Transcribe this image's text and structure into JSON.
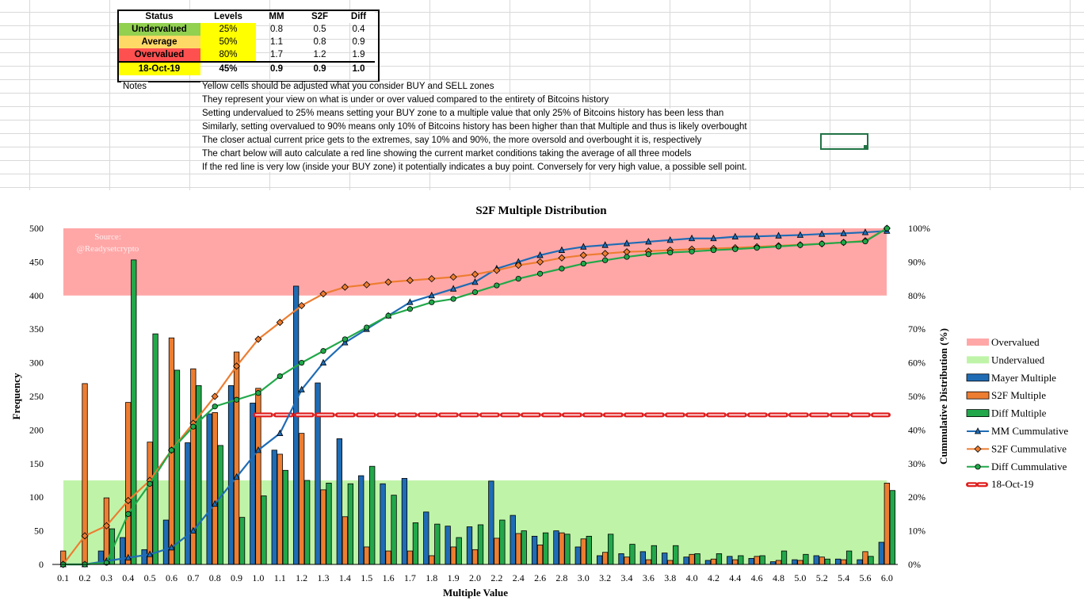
{
  "summary_table": {
    "headers": [
      "Status",
      "Levels",
      "MM",
      "S2F",
      "Diff"
    ],
    "rows": [
      {
        "status": "Undervalued",
        "level": "25%",
        "mm": "0.8",
        "s2f": "0.5",
        "diff": "0.4",
        "color": "#92d050"
      },
      {
        "status": "Average",
        "level": "50%",
        "mm": "1.1",
        "s2f": "0.8",
        "diff": "0.9",
        "color": "#ffd966"
      },
      {
        "status": "Overvalued",
        "level": "80%",
        "mm": "1.7",
        "s2f": "1.2",
        "diff": "1.9",
        "color": "#ff5050"
      }
    ],
    "current": {
      "date": "18-Oct-19",
      "level": "45%",
      "mm": "0.9",
      "s2f": "0.9",
      "diff": "1.0",
      "color": "#ffff00"
    }
  },
  "notes": {
    "label": "Notes",
    "lines": [
      "Yellow cells should be adjusted what you consider BUY and SELL zones",
      "They represent your view on what is under or over valued compared to the entirety of Bitcoins history",
      "Setting undervalued to 25% means setting your BUY zone to a multiple value that only 25% of Bitcoins history has been less than",
      "Similarly, setting overvalued to 90% means only 10% of Bitcoins history has been higher than that Multiple and thus is likely overbought",
      "The closer actual current price gets to the extremes, say 10% and 90%, the more oversold and overbought it is, respectively",
      "The chart below will auto calculate a red line showing the current market conditions taking the average of all three models",
      "If the red line is very low (inside your BUY zone) it potentially indicates a buy point. Conversely for very high value, a possible sell point."
    ]
  },
  "chart_data": {
    "type": "bar",
    "title": "S2F Multiple Distribution",
    "xlabel": "Multiple Value",
    "ylabel": "Frequency",
    "y2label": "Cummulative Distribution (%)",
    "watermark": [
      "Source:",
      "@Readysetcrypto"
    ],
    "ylim": [
      0,
      500
    ],
    "y2lim": [
      0,
      100
    ],
    "yticks": [
      "0",
      "50",
      "100",
      "150",
      "200",
      "250",
      "300",
      "350",
      "400",
      "450",
      "500"
    ],
    "y2ticks": [
      "0%",
      "10%",
      "20%",
      "30%",
      "40%",
      "50%",
      "60%",
      "70%",
      "80%",
      "90%",
      "100%"
    ],
    "categories": [
      "0.1",
      "0.2",
      "0.3",
      "0.4",
      "0.5",
      "0.6",
      "0.7",
      "0.8",
      "0.9",
      "1.0",
      "1.1",
      "1.2",
      "1.3",
      "1.4",
      "1.5",
      "1.6",
      "1.7",
      "1.8",
      "1.9",
      "2.0",
      "2.2",
      "2.4",
      "2.6",
      "2.8",
      "3.0",
      "3.2",
      "3.4",
      "3.6",
      "3.8",
      "4.0",
      "4.2",
      "4.4",
      "4.6",
      "4.8",
      "5.0",
      "5.2",
      "5.4",
      "5.6",
      "6.0"
    ],
    "bands": [
      {
        "name": "Overvalued",
        "from": 400,
        "to": 500,
        "color": "#ffa7a7"
      },
      {
        "name": "Undervalued",
        "from": 0,
        "to": 125,
        "color": "#bff4a8"
      }
    ],
    "series": [
      {
        "name": "Mayer Multiple",
        "kind": "bar",
        "color": "#1f6cb5",
        "values": [
          0,
          0,
          20,
          40,
          22,
          66,
          181,
          224,
          266,
          240,
          170,
          414,
          270,
          187,
          132,
          120,
          128,
          78,
          57,
          56,
          124,
          73,
          42,
          50,
          26,
          13,
          16,
          19,
          17,
          11,
          6,
          12,
          9,
          4,
          7,
          13,
          8,
          7,
          33
        ]
      },
      {
        "name": "S2F Multiple",
        "kind": "bar",
        "color": "#ed7d31",
        "values": [
          20,
          269,
          99,
          241,
          182,
          337,
          291,
          226,
          316,
          262,
          164,
          195,
          111,
          71,
          26,
          20,
          20,
          13,
          26,
          22,
          39,
          46,
          29,
          47,
          38,
          18,
          11,
          7,
          6,
          15,
          8,
          7,
          12,
          6,
          6,
          11,
          7,
          19,
          121
        ]
      },
      {
        "name": "Diff Multiple",
        "kind": "bar",
        "color": "#22a84a",
        "values": [
          0,
          0,
          53,
          453,
          343,
          289,
          266,
          177,
          70,
          102,
          140,
          125,
          121,
          120,
          146,
          103,
          62,
          60,
          40,
          59,
          66,
          50,
          47,
          45,
          42,
          45,
          30,
          28,
          28,
          16,
          16,
          13,
          13,
          20,
          15,
          8,
          20,
          12,
          110
        ]
      },
      {
        "name": "MM Cummulative",
        "kind": "line",
        "marker": "triangle",
        "color": "#1f6cb5",
        "values": [
          0,
          0,
          1,
          2,
          3,
          5,
          10,
          18,
          26,
          34,
          39,
          52,
          60,
          66,
          70,
          74,
          78,
          80,
          82,
          84,
          88,
          90,
          92,
          93.5,
          94.5,
          95,
          95.5,
          96,
          96.5,
          97,
          97,
          97.5,
          97.6,
          97.8,
          98,
          98.3,
          98.5,
          98.8,
          99.2
        ]
      },
      {
        "name": "S2F Cummulative",
        "kind": "line",
        "marker": "diamond",
        "color": "#ed7d31",
        "values": [
          0,
          8.5,
          11.5,
          19,
          25,
          34,
          42,
          50,
          59,
          67,
          72,
          77,
          80.5,
          82.5,
          83.2,
          84,
          84.5,
          85,
          85.5,
          86.3,
          87.5,
          89,
          90,
          91.2,
          92,
          92.5,
          93,
          93.2,
          93.5,
          93.8,
          94,
          94.2,
          94.5,
          94.8,
          95.1,
          95.4,
          95.8,
          96.3,
          100
        ]
      },
      {
        "name": "Diff Cummulative",
        "kind": "line",
        "marker": "circle",
        "color": "#22a84a",
        "values": [
          0,
          0,
          0.5,
          15,
          24,
          34,
          41,
          47,
          49,
          51,
          56,
          60,
          63.5,
          67,
          70.5,
          74,
          76,
          78,
          79,
          81,
          83,
          85,
          86.5,
          88,
          89.5,
          90.5,
          91.5,
          92.3,
          92.8,
          93.1,
          93.5,
          93.8,
          94.2,
          94.6,
          95,
          95.4,
          95.8,
          96.1,
          100
        ]
      },
      {
        "name": "18-Oct-19",
        "kind": "hline",
        "color": "#e02020",
        "y2value": 44.5
      }
    ]
  }
}
